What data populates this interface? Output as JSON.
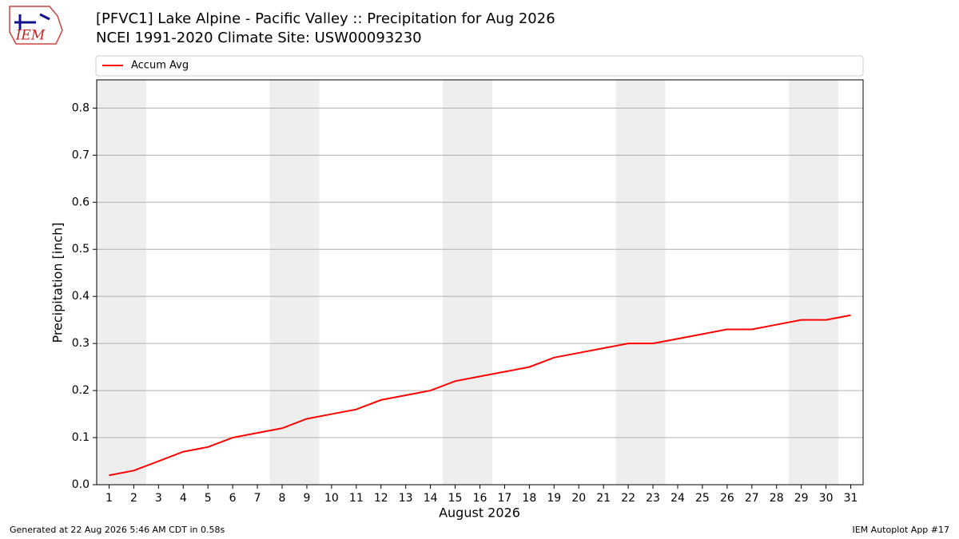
{
  "logo": "IEM",
  "footer": {
    "left": "Generated at 22 Aug 2026 5:46 AM CDT in 0.58s",
    "right": "IEM Autoplot App #17"
  },
  "chart_data": {
    "type": "line",
    "title": "[PFVC1] Lake Alpine - Pacific Valley :: Precipitation for Aug 2026",
    "subtitle": "NCEI 1991-2020 Climate Site: USW00093230",
    "x_label": "August 2026",
    "y_label": "Precipitation [inch]",
    "x": [
      1,
      2,
      3,
      4,
      5,
      6,
      7,
      8,
      9,
      10,
      11,
      12,
      13,
      14,
      15,
      16,
      17,
      18,
      19,
      20,
      21,
      22,
      23,
      24,
      25,
      26,
      27,
      28,
      29,
      30,
      31
    ],
    "series": [
      {
        "name": "Accum Avg",
        "color": "#ff0000",
        "values": [
          0.02,
          0.03,
          0.05,
          0.07,
          0.08,
          0.1,
          0.11,
          0.12,
          0.14,
          0.15,
          0.16,
          0.18,
          0.19,
          0.2,
          0.22,
          0.23,
          0.24,
          0.25,
          0.27,
          0.28,
          0.29,
          0.3,
          0.3,
          0.31,
          0.32,
          0.33,
          0.33,
          0.34,
          0.35,
          0.35,
          0.36
        ]
      }
    ],
    "shaded_spans": [
      [
        0.5,
        2.5
      ],
      [
        7.5,
        9.5
      ],
      [
        14.5,
        16.5
      ],
      [
        21.5,
        23.5
      ],
      [
        28.5,
        30.5
      ]
    ],
    "shade_color": "#eeeeee",
    "xlim": [
      0.5,
      31.5
    ],
    "xticks": [
      1,
      2,
      3,
      4,
      5,
      6,
      7,
      8,
      9,
      10,
      11,
      12,
      13,
      14,
      15,
      16,
      17,
      18,
      19,
      20,
      21,
      22,
      23,
      24,
      25,
      26,
      27,
      28,
      29,
      30,
      31
    ],
    "ylim": [
      0,
      0.86
    ],
    "yticks": [
      {
        "value": 0,
        "label": "0.0"
      },
      0.1,
      0.2,
      0.3,
      0.4,
      0.5,
      0.6,
      0.7,
      0.8
    ],
    "grid": true,
    "legend": "top"
  }
}
